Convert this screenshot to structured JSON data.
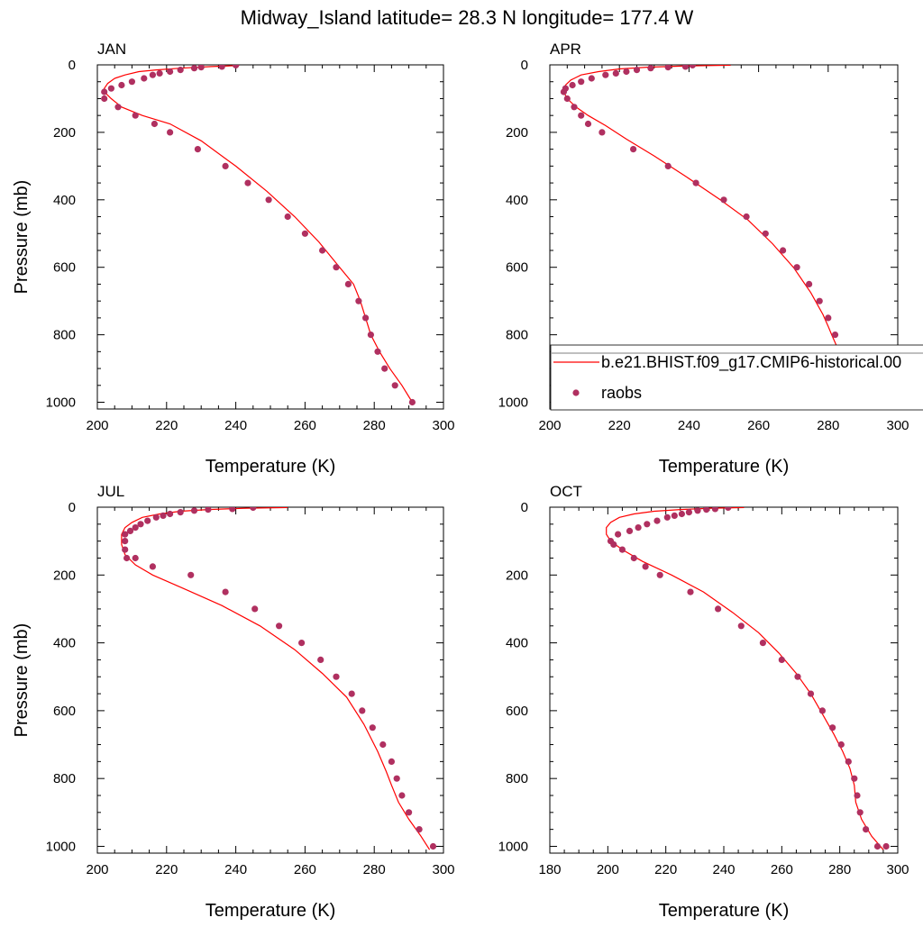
{
  "figure_title": "Midway_Island  latitude= 28.3 N longitude= 177.4 W",
  "legend": {
    "model_label": "b.e21.BHIST.f09_g17.CMIP6-historical.00",
    "obs_label": "raobs",
    "model_color": "#ff0000",
    "obs_color": "#b03060"
  },
  "chart_data": [
    {
      "type": "line",
      "panel_label": "JAN",
      "xlabel": "Temperature (K)",
      "ylabel": "Pressure (mb)",
      "xlim": [
        200,
        300
      ],
      "ylim": [
        1020,
        0
      ],
      "xticks": [
        "200",
        "220",
        "240",
        "260",
        "280",
        "300"
      ],
      "yticks": [
        "0",
        "200",
        "400",
        "600",
        "800",
        "1000"
      ],
      "series": [
        {
          "name": "b.e21.BHIST.f09_g17.CMIP6-historical.00",
          "kind": "line",
          "x": [
            241,
            233,
            224,
            217,
            212,
            208,
            205,
            203,
            202,
            202.5,
            204,
            207,
            213,
            221,
            230,
            240,
            249,
            257,
            264,
            270,
            274,
            276,
            277.5,
            279,
            281.5,
            284.5,
            288,
            291
          ],
          "y": [
            2,
            5,
            10,
            15,
            20,
            30,
            40,
            55,
            70,
            85,
            100,
            125,
            150,
            175,
            225,
            300,
            375,
            450,
            525,
            600,
            650,
            700,
            750,
            800,
            850,
            900,
            950,
            1000
          ]
        },
        {
          "name": "raobs",
          "kind": "scatter",
          "x": [
            240,
            236,
            230,
            228,
            224,
            221,
            218,
            216,
            213.5,
            210,
            207,
            204,
            202,
            202,
            206,
            211,
            216.5,
            221,
            229,
            237,
            243.5,
            249.5,
            255,
            260,
            265,
            269,
            272.5,
            275.5,
            277.5,
            279,
            281,
            283,
            286,
            291
          ],
          "y": [
            1,
            5,
            7,
            10,
            15,
            20,
            25,
            30,
            40,
            50,
            60,
            70,
            80,
            100,
            125,
            150,
            175,
            200,
            250,
            300,
            350,
            400,
            450,
            500,
            550,
            600,
            650,
            700,
            750,
            800,
            850,
            900,
            950,
            1000
          ]
        }
      ]
    },
    {
      "type": "line",
      "panel_label": "APR",
      "xlabel": "Temperature (K)",
      "ylabel": "",
      "xlim": [
        200,
        300
      ],
      "ylim": [
        1020,
        0
      ],
      "xticks": [
        "200",
        "220",
        "240",
        "260",
        "280",
        "300"
      ],
      "yticks": [
        "0",
        "200",
        "400",
        "600",
        "800",
        "1000"
      ],
      "series": [
        {
          "name": "b.e21.BHIST.f09_g17.CMIP6-historical.00",
          "kind": "line",
          "x": [
            252,
            240,
            228,
            220,
            214,
            209,
            206,
            204.5,
            204,
            205,
            207.5,
            211,
            216,
            222,
            230,
            239,
            249,
            257,
            264,
            270,
            275,
            278.5,
            280,
            281,
            284,
            287,
            291
          ],
          "y": [
            1,
            3,
            7,
            12,
            20,
            30,
            45,
            60,
            80,
            100,
            125,
            150,
            180,
            220,
            270,
            330,
            400,
            460,
            530,
            600,
            675,
            740,
            775,
            800,
            870,
            940,
            1000
          ]
        },
        {
          "name": "raobs",
          "kind": "scatter",
          "x": [
            241,
            239,
            234,
            229,
            225,
            222,
            219,
            216,
            212,
            209,
            206.5,
            204.5,
            204,
            205,
            207,
            209,
            211,
            215,
            224,
            234,
            242,
            250,
            256.5,
            262,
            267,
            271,
            274.5,
            277.5,
            280,
            282,
            283,
            285,
            288,
            291
          ],
          "y": [
            1,
            5,
            7,
            10,
            15,
            20,
            25,
            30,
            40,
            50,
            60,
            70,
            80,
            100,
            125,
            150,
            175,
            200,
            250,
            300,
            350,
            400,
            450,
            500,
            550,
            600,
            650,
            700,
            750,
            800,
            850,
            900,
            950,
            1000
          ]
        }
      ]
    },
    {
      "type": "line",
      "panel_label": "JUL",
      "xlabel": "Temperature (K)",
      "ylabel": "Pressure (mb)",
      "xlim": [
        200,
        300
      ],
      "ylim": [
        1020,
        0
      ],
      "xticks": [
        "200",
        "220",
        "240",
        "260",
        "280",
        "300"
      ],
      "yticks": [
        "0",
        "200",
        "400",
        "600",
        "800",
        "1000"
      ],
      "series": [
        {
          "name": "b.e21.BHIST.f09_g17.CMIP6-historical.00",
          "kind": "line",
          "x": [
            255,
            243,
            232,
            224,
            218,
            213,
            210,
            208,
            207,
            207,
            208,
            211,
            216,
            225,
            236,
            247,
            257,
            265,
            272,
            277,
            281,
            283.5,
            285,
            287,
            290,
            293.5,
            296
          ],
          "y": [
            1,
            3,
            7,
            12,
            20,
            30,
            45,
            60,
            80,
            110,
            140,
            170,
            200,
            240,
            290,
            350,
            420,
            490,
            560,
            640,
            720,
            780,
            820,
            870,
            920,
            970,
            1010
          ]
        },
        {
          "name": "raobs",
          "kind": "scatter",
          "x": [
            245,
            239,
            232,
            228,
            224,
            221,
            219,
            217,
            214.5,
            212.5,
            211,
            209.5,
            208,
            208,
            208,
            208.5,
            211,
            216,
            227,
            237,
            245.5,
            252.5,
            259,
            264.5,
            269,
            273.5,
            276.5,
            279.5,
            282.5,
            285,
            286.5,
            288,
            290,
            293,
            297
          ],
          "y": [
            1,
            5,
            7,
            10,
            15,
            20,
            25,
            30,
            40,
            50,
            60,
            70,
            80,
            100,
            125,
            150,
            150,
            175,
            200,
            250,
            300,
            350,
            400,
            450,
            500,
            550,
            600,
            650,
            700,
            750,
            800,
            850,
            900,
            950,
            1000
          ]
        }
      ]
    },
    {
      "type": "line",
      "panel_label": "OCT",
      "xlabel": "Temperature (K)",
      "ylabel": "",
      "xlim": [
        180,
        300
      ],
      "ylim": [
        1020,
        0
      ],
      "xticks": [
        "180",
        "200",
        "220",
        "240",
        "260",
        "280",
        "300"
      ],
      "yticks": [
        "0",
        "200",
        "400",
        "600",
        "800",
        "1000"
      ],
      "series": [
        {
          "name": "b.e21.BHIST.f09_g17.CMIP6-historical.00",
          "kind": "line",
          "x": [
            247,
            236,
            225,
            216,
            209,
            204,
            201,
            199.5,
            199.5,
            201,
            205,
            212,
            222,
            233,
            243,
            252,
            259,
            265,
            270,
            274,
            278,
            281,
            283.5,
            285,
            285.5,
            287.5,
            291,
            295
          ],
          "y": [
            1,
            3,
            7,
            12,
            20,
            30,
            45,
            60,
            80,
            100,
            125,
            160,
            200,
            250,
            310,
            370,
            430,
            490,
            550,
            610,
            670,
            720,
            770,
            820,
            870,
            920,
            970,
            1010
          ]
        },
        {
          "name": "raobs",
          "kind": "scatter",
          "x": [
            241.5,
            237,
            234,
            231,
            228,
            225.5,
            223,
            220.5,
            217,
            213.5,
            210.5,
            207.5,
            203.5,
            201,
            202,
            205,
            209,
            213,
            218,
            228.5,
            238,
            246,
            253.5,
            260,
            265.5,
            270,
            274,
            277.5,
            280.5,
            283,
            285,
            286,
            287,
            289,
            293,
            296
          ],
          "y": [
            1,
            5,
            7,
            10,
            15,
            20,
            25,
            30,
            40,
            50,
            60,
            70,
            80,
            100,
            110,
            125,
            150,
            175,
            200,
            250,
            300,
            350,
            400,
            450,
            500,
            550,
            600,
            650,
            700,
            750,
            800,
            850,
            900,
            950,
            1000,
            1000
          ]
        }
      ]
    }
  ]
}
